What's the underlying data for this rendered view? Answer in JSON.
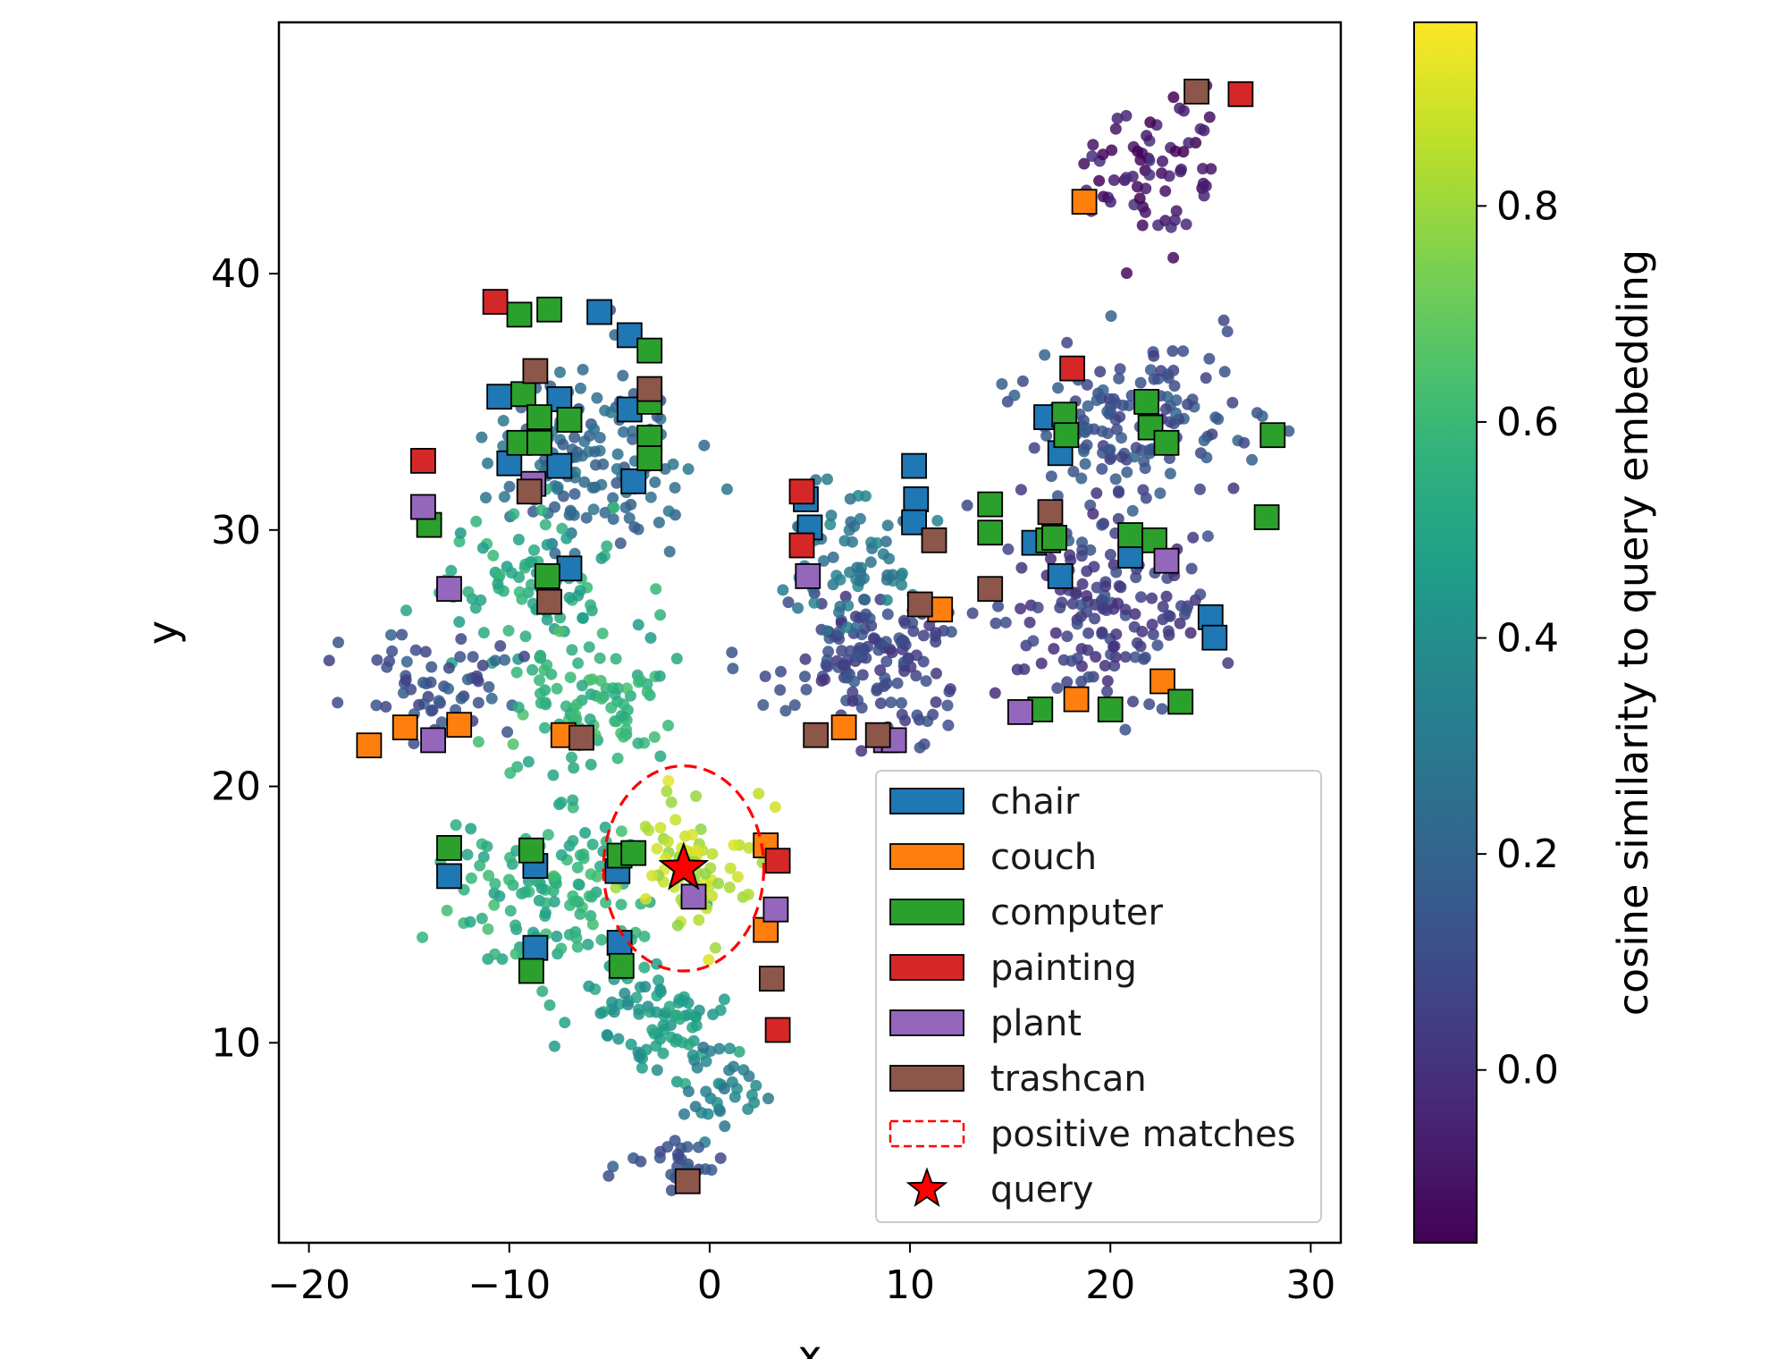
{
  "chart_data": {
    "type": "scatter",
    "xlabel": "x",
    "ylabel": "y",
    "xlim": [
      -21.5,
      31.5
    ],
    "ylim": [
      2.2,
      49.8
    ],
    "xticks": [
      -20,
      -10,
      0,
      10,
      20,
      30
    ],
    "yticks": [
      10,
      20,
      30,
      40
    ],
    "xtick_labels": [
      "−20",
      "−10",
      "0",
      "10",
      "20",
      "30"
    ],
    "ytick_labels": [
      "10",
      "20",
      "30",
      "40"
    ],
    "grid": false,
    "legend_position": "lower-right",
    "colorbar": {
      "label": "cosine similarity to query embedding",
      "colormap": "viridis",
      "range": [
        -0.16,
        0.97
      ],
      "ticks": [
        0.0,
        0.2,
        0.4,
        0.6,
        0.8
      ],
      "tick_labels": [
        "0.0",
        "0.2",
        "0.4",
        "0.6",
        "0.8"
      ]
    },
    "background_points": {
      "description": "embedded scene features colored by cosine similarity",
      "marker": "circle",
      "clusters": [
        {
          "center": [
            -6,
            33
          ],
          "spread": [
            4.5,
            3.5
          ],
          "count": 150,
          "sim": 0.22
        },
        {
          "center": [
            -9,
            28
          ],
          "spread": [
            4.5,
            2.5
          ],
          "count": 100,
          "sim": 0.52
        },
        {
          "center": [
            -13,
            24
          ],
          "spread": [
            3.5,
            2.0
          ],
          "count": 60,
          "sim": 0.12
        },
        {
          "center": [
            -6,
            23
          ],
          "spread": [
            4.0,
            2.0
          ],
          "count": 90,
          "sim": 0.58
        },
        {
          "center": [
            -8,
            16
          ],
          "spread": [
            4.5,
            3.0
          ],
          "count": 130,
          "sim": 0.55
        },
        {
          "center": [
            -1,
            17
          ],
          "spread": [
            2.5,
            2.5
          ],
          "count": 70,
          "sim": 0.85
        },
        {
          "center": [
            -3,
            11
          ],
          "spread": [
            3.5,
            1.8
          ],
          "count": 80,
          "sim": 0.45
        },
        {
          "center": [
            1,
            8
          ],
          "spread": [
            2.0,
            2.0
          ],
          "count": 35,
          "sim": 0.33
        },
        {
          "center": [
            -2,
            5.5
          ],
          "spread": [
            2.5,
            1.0
          ],
          "count": 25,
          "sim": 0.12
        },
        {
          "center": [
            8,
            25
          ],
          "spread": [
            4.5,
            2.5
          ],
          "count": 140,
          "sim": 0.08
        },
        {
          "center": [
            7,
            29
          ],
          "spread": [
            3.5,
            2.5
          ],
          "count": 70,
          "sim": 0.3
        },
        {
          "center": [
            20,
            27
          ],
          "spread": [
            4.5,
            3.5
          ],
          "count": 150,
          "sim": 0.05
        },
        {
          "center": [
            21,
            34
          ],
          "spread": [
            5.0,
            3.0
          ],
          "count": 150,
          "sim": 0.12
        },
        {
          "center": [
            22,
            44
          ],
          "spread": [
            3.5,
            2.5
          ],
          "count": 70,
          "sim": -0.08
        }
      ]
    },
    "series": [
      {
        "name": "chair",
        "color": "#1f77b4",
        "marker": "square",
        "points": [
          [
            -5.5,
            38.5
          ],
          [
            -4,
            37.6
          ],
          [
            -10.5,
            35.2
          ],
          [
            -7.5,
            35.1
          ],
          [
            -4,
            34.7
          ],
          [
            -10,
            32.6
          ],
          [
            -7.5,
            32.5
          ],
          [
            -3.8,
            31.9
          ],
          [
            -7,
            28.5
          ],
          [
            -8.7,
            16.9
          ],
          [
            -13,
            16.5
          ],
          [
            -4.6,
            16.7
          ],
          [
            -8.7,
            13.7
          ],
          [
            -4.5,
            13.9
          ],
          [
            4.8,
            31.2
          ],
          [
            5,
            30.1
          ],
          [
            10.2,
            32.5
          ],
          [
            10.3,
            31.2
          ],
          [
            10.2,
            30.3
          ],
          [
            16.8,
            34.4
          ],
          [
            17.5,
            33
          ],
          [
            16.2,
            29.5
          ],
          [
            17.5,
            28.2
          ],
          [
            21,
            29
          ],
          [
            25,
            26.6
          ],
          [
            25.2,
            25.8
          ]
        ]
      },
      {
        "name": "couch",
        "color": "#ff7f0e",
        "marker": "square",
        "points": [
          [
            -17,
            21.6
          ],
          [
            -15.2,
            22.3
          ],
          [
            -12.5,
            22.4
          ],
          [
            -7.3,
            22
          ],
          [
            18.7,
            42.8
          ],
          [
            6.7,
            22.3
          ],
          [
            11.5,
            26.9
          ],
          [
            18.3,
            23.4
          ],
          [
            22.6,
            24.1
          ],
          [
            2.8,
            17.7
          ],
          [
            2.8,
            14.4
          ]
        ]
      },
      {
        "name": "computer",
        "color": "#2ca02c",
        "marker": "square",
        "points": [
          [
            -9.5,
            38.4
          ],
          [
            -8,
            38.6
          ],
          [
            -3,
            37
          ],
          [
            -9.3,
            35.3
          ],
          [
            -8.5,
            34.4
          ],
          [
            -7,
            34.3
          ],
          [
            -3,
            35
          ],
          [
            -9.5,
            33.4
          ],
          [
            -8.5,
            33.4
          ],
          [
            -3,
            33.6
          ],
          [
            -3,
            32.8
          ],
          [
            -14,
            30.2
          ],
          [
            -8.1,
            28.2
          ],
          [
            -13,
            17.6
          ],
          [
            -8.9,
            17.5
          ],
          [
            -4.5,
            17.3
          ],
          [
            -3.8,
            17.4
          ],
          [
            -8.9,
            12.8
          ],
          [
            -4.4,
            13
          ],
          [
            14,
            31
          ],
          [
            14,
            29.9
          ],
          [
            17.7,
            34.5
          ],
          [
            17.8,
            33.7
          ],
          [
            16.9,
            29.6
          ],
          [
            17.2,
            29.7
          ],
          [
            21.8,
            35
          ],
          [
            22,
            34
          ],
          [
            22.8,
            33.4
          ],
          [
            21,
            29.8
          ],
          [
            22.2,
            29.6
          ],
          [
            28.1,
            33.7
          ],
          [
            27.8,
            30.5
          ],
          [
            16.5,
            23
          ],
          [
            20,
            23
          ],
          [
            23.5,
            23.3
          ]
        ]
      },
      {
        "name": "painting",
        "color": "#d62728",
        "marker": "square",
        "points": [
          [
            -10.7,
            38.9
          ],
          [
            26.5,
            47
          ],
          [
            18.1,
            36.3
          ],
          [
            -14.3,
            32.7
          ],
          [
            4.6,
            31.5
          ],
          [
            4.6,
            29.4
          ],
          [
            3.4,
            17.1
          ],
          [
            3.4,
            10.5
          ]
        ]
      },
      {
        "name": "plant",
        "color": "#9467bd",
        "marker": "square",
        "points": [
          [
            -8.8,
            31.8
          ],
          [
            -14.3,
            30.9
          ],
          [
            -13,
            27.7
          ],
          [
            -13.8,
            21.8
          ],
          [
            4.9,
            28.2
          ],
          [
            8.8,
            21.8
          ],
          [
            9.2,
            21.8
          ],
          [
            15.5,
            22.9
          ],
          [
            22.8,
            28.8
          ],
          [
            -0.8,
            15.7
          ],
          [
            3.3,
            15.2
          ]
        ]
      },
      {
        "name": "trashcan",
        "color": "#8c564b",
        "marker": "square",
        "points": [
          [
            24.3,
            47.1
          ],
          [
            -8.7,
            36.2
          ],
          [
            -3,
            35.5
          ],
          [
            -9,
            31.5
          ],
          [
            -8,
            27.2
          ],
          [
            -6.4,
            21.9
          ],
          [
            11.2,
            29.6
          ],
          [
            10.5,
            27.1
          ],
          [
            14,
            27.7
          ],
          [
            17,
            30.7
          ],
          [
            5.3,
            22
          ],
          [
            8.4,
            22
          ],
          [
            3.1,
            12.5
          ],
          [
            -1.1,
            4.6
          ]
        ]
      }
    ],
    "query": {
      "name": "query",
      "x": -1.3,
      "y": 16.8,
      "color": "#ff0000",
      "marker": "star"
    },
    "positive_matches": {
      "name": "positive matches",
      "center": [
        -1.3,
        16.8
      ],
      "radii": [
        4,
        4
      ],
      "color": "#ff0000",
      "style": "dashed-ellipse"
    }
  }
}
